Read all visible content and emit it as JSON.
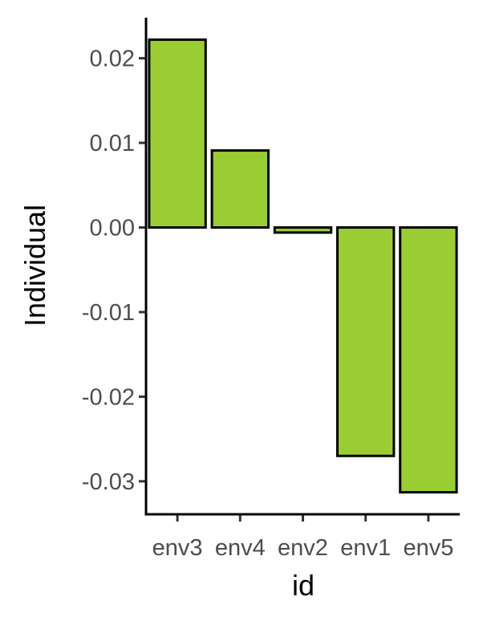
{
  "chart_data": {
    "type": "bar",
    "categories": [
      "env3",
      "env4",
      "env2",
      "env1",
      "env5"
    ],
    "values": [
      0.0222,
      0.0091,
      -0.0006,
      -0.027,
      -0.0313
    ],
    "xlabel": "id",
    "ylabel": "Individual",
    "yticks": [
      0.02,
      0.01,
      0.0,
      -0.01,
      -0.02,
      -0.03
    ],
    "ytick_labels": [
      "0.02",
      "0.01",
      "0.00",
      "-0.01",
      "-0.02",
      "-0.03"
    ],
    "ylim": [
      -0.0339,
      0.0248
    ],
    "grid": false,
    "legend": "none",
    "colors": {
      "bar_fill": "#9acd32",
      "bar_stroke": "#000000"
    }
  }
}
